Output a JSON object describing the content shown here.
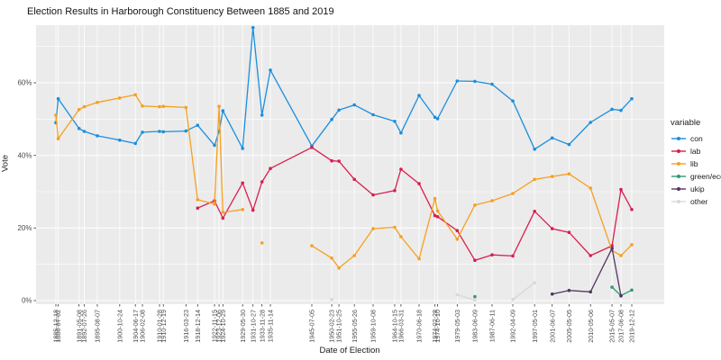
{
  "chart_data": {
    "type": "line",
    "title": "Election Results in Harborough Constituency Between 1885 and 2019",
    "xlabel": "Date of Election",
    "ylabel": "Vote",
    "legend_title": "variable",
    "ylim": [
      0,
      76
    ],
    "yticks": [
      {
        "value": 0,
        "label": "0%"
      },
      {
        "value": 20,
        "label": "20%"
      },
      {
        "value": 40,
        "label": "40%"
      },
      {
        "value": 60,
        "label": "60%"
      }
    ],
    "yticks_minor": [
      10,
      30,
      50,
      70
    ],
    "grid": "white-on-gray",
    "legend_position": "right",
    "x_tick_dates": [
      "1885-12-18",
      "1886-07-02",
      "1891-05-08",
      "1892-07-26",
      "1895-08-07",
      "1900-10-24",
      "1904-06-17",
      "1906-02-08",
      "1910-01-28",
      "1910-12-19",
      "1916-03-23",
      "1918-12-14",
      "1922-11-15",
      "1923-12-06",
      "1924-10-29",
      "1929-05-30",
      "1931-10-27",
      "1933-11-28",
      "1935-11-14",
      "1945-07-05",
      "1950-02-23",
      "1951-10-25",
      "1955-05-26",
      "1959-10-08",
      "1964-10-15",
      "1966-03-31",
      "1970-06-18",
      "1974-02-28",
      "1974-10-10",
      "1979-05-03",
      "1983-06-09",
      "1987-06-11",
      "1992-04-09",
      "1997-05-01",
      "2001-06-07",
      "2005-05-05",
      "2010-05-06",
      "2015-05-07",
      "2017-06-08",
      "2019-12-12"
    ],
    "series": [
      {
        "name": "con",
        "color": "#1b8fdd",
        "segments": [
          [
            [
              "1885-12-18",
              49.0
            ],
            [
              "1886-07-02",
              55.6
            ],
            [
              "1891-05-08",
              47.4
            ],
            [
              "1892-07-26",
              46.6
            ],
            [
              "1895-08-07",
              45.4
            ],
            [
              "1900-10-24",
              44.2
            ],
            [
              "1904-06-17",
              43.3
            ],
            [
              "1906-02-08",
              46.4
            ],
            [
              "1910-01-28",
              46.6
            ],
            [
              "1910-12-19",
              46.5
            ],
            [
              "1916-03-23",
              46.7
            ],
            [
              "1918-12-14",
              48.3
            ],
            [
              "1922-11-15",
              42.8
            ],
            [
              "1923-12-06",
              46.6
            ],
            [
              "1924-10-29",
              52.3
            ],
            [
              "1929-05-30",
              41.9
            ],
            [
              "1931-10-27",
              75.2
            ],
            [
              "1933-11-28",
              51.1
            ],
            [
              "1935-11-14",
              63.5
            ],
            [
              "1945-07-05",
              42.6
            ],
            [
              "1950-02-23",
              49.9
            ],
            [
              "1951-10-25",
              52.5
            ],
            [
              "1955-05-26",
              53.9
            ],
            [
              "1959-10-08",
              51.2
            ],
            [
              "1964-10-15",
              49.4
            ],
            [
              "1966-03-31",
              46.2
            ],
            [
              "1970-06-18",
              56.5
            ],
            [
              "1974-02-28",
              50.5
            ],
            [
              "1974-10-10",
              50.1
            ],
            [
              "1979-05-03",
              60.5
            ],
            [
              "1983-06-09",
              60.4
            ],
            [
              "1987-06-11",
              59.6
            ],
            [
              "1992-04-09",
              55.0
            ],
            [
              "1997-05-01",
              41.7
            ],
            [
              "2001-06-07",
              44.8
            ],
            [
              "2005-05-05",
              43.0
            ],
            [
              "2010-05-06",
              49.1
            ],
            [
              "2015-05-07",
              52.7
            ],
            [
              "2017-06-08",
              52.4
            ],
            [
              "2019-12-12",
              55.6
            ]
          ]
        ]
      },
      {
        "name": "lab",
        "color": "#d91e4e",
        "segments": [
          [
            [
              "1918-12-14",
              25.5
            ],
            [
              "1922-11-15",
              27.5
            ],
            [
              "1924-10-29",
              22.7
            ],
            [
              "1929-05-30",
              32.4
            ],
            [
              "1931-10-27",
              24.9
            ],
            [
              "1933-11-28",
              32.7
            ],
            [
              "1935-11-14",
              36.4
            ],
            [
              "1945-07-05",
              42.2
            ],
            [
              "1950-02-23",
              38.5
            ],
            [
              "1951-10-25",
              38.4
            ],
            [
              "1955-05-26",
              33.4
            ],
            [
              "1959-10-08",
              29.1
            ],
            [
              "1964-10-15",
              30.3
            ],
            [
              "1966-03-31",
              36.2
            ],
            [
              "1970-06-18",
              32.2
            ],
            [
              "1974-02-28",
              23.4
            ],
            [
              "1974-10-10",
              23.1
            ],
            [
              "1979-05-03",
              19.3
            ],
            [
              "1983-06-09",
              11.1
            ],
            [
              "1987-06-11",
              12.6
            ],
            [
              "1992-04-09",
              12.3
            ],
            [
              "1997-05-01",
              24.6
            ],
            [
              "2001-06-07",
              19.8
            ],
            [
              "2005-05-05",
              18.8
            ],
            [
              "2010-05-06",
              12.4
            ],
            [
              "2015-05-07",
              15.1
            ],
            [
              "2017-06-08",
              30.6
            ],
            [
              "2019-12-12",
              25.1
            ]
          ]
        ]
      },
      {
        "name": "lib",
        "color": "#f6a01f",
        "segments": [
          [
            [
              "1885-12-18",
              51.1
            ],
            [
              "1886-07-02",
              44.6
            ],
            [
              "1891-05-08",
              52.6
            ],
            [
              "1892-07-26",
              53.4
            ],
            [
              "1895-08-07",
              54.6
            ],
            [
              "1900-10-24",
              55.8
            ],
            [
              "1904-06-17",
              56.7
            ],
            [
              "1906-02-08",
              53.6
            ],
            [
              "1910-01-28",
              53.4
            ],
            [
              "1910-12-19",
              53.5
            ],
            [
              "1916-03-23",
              53.2
            ],
            [
              "1918-12-14",
              27.8
            ],
            [
              "1922-11-15",
              26.6
            ],
            [
              "1923-12-06",
              53.5
            ],
            [
              "1924-10-29",
              24.3
            ],
            [
              "1929-05-30",
              25.1
            ]
          ],
          [
            [
              "1933-11-28",
              15.9
            ]
          ],
          [
            [
              "1945-07-05",
              15.1
            ],
            [
              "1950-02-23",
              11.7
            ],
            [
              "1951-10-25",
              9.0
            ],
            [
              "1955-05-26",
              12.4
            ],
            [
              "1959-10-08",
              19.8
            ],
            [
              "1964-10-15",
              20.2
            ],
            [
              "1966-03-31",
              17.6
            ],
            [
              "1970-06-18",
              11.5
            ],
            [
              "1974-02-28",
              28.1
            ],
            [
              "1974-10-10",
              24.7
            ],
            [
              "1979-05-03",
              16.9
            ],
            [
              "1983-06-09",
              26.3
            ],
            [
              "1987-06-11",
              27.5
            ],
            [
              "1992-04-09",
              29.5
            ],
            [
              "1997-05-01",
              33.4
            ],
            [
              "2001-06-07",
              34.2
            ],
            [
              "2005-05-05",
              34.9
            ],
            [
              "2010-05-06",
              31.0
            ],
            [
              "2015-05-07",
              13.8
            ],
            [
              "2017-06-08",
              12.4
            ],
            [
              "2019-12-12",
              15.4
            ]
          ]
        ]
      },
      {
        "name": "green/eco",
        "color": "#2e9b74",
        "segments": [
          [
            [
              "1983-06-09",
              1.1
            ]
          ],
          [
            [
              "2015-05-07",
              3.7
            ],
            [
              "2017-06-08",
              1.4
            ],
            [
              "2019-12-12",
              2.9
            ]
          ]
        ]
      },
      {
        "name": "ukip",
        "color": "#553563",
        "segments": [
          [
            [
              "2001-06-07",
              1.8
            ],
            [
              "2005-05-05",
              2.8
            ],
            [
              "2010-05-06",
              2.4
            ],
            [
              "2015-05-07",
              14.4
            ],
            [
              "2017-06-08",
              1.3
            ]
          ]
        ]
      },
      {
        "name": "other",
        "color": "#d8d8d8",
        "segments": [
          [
            [
              "1950-02-23",
              0.3
            ]
          ],
          [
            [
              "1979-05-03",
              1.6
            ],
            [
              "1983-06-09",
              0.2
            ]
          ],
          [
            [
              "1992-04-09",
              0.3
            ],
            [
              "1997-05-01",
              4.9
            ]
          ]
        ]
      }
    ],
    "panel_background": "#EBEBEB",
    "gridline_color": "#FFFFFF",
    "axis_text_color": "#4d4d4d"
  }
}
